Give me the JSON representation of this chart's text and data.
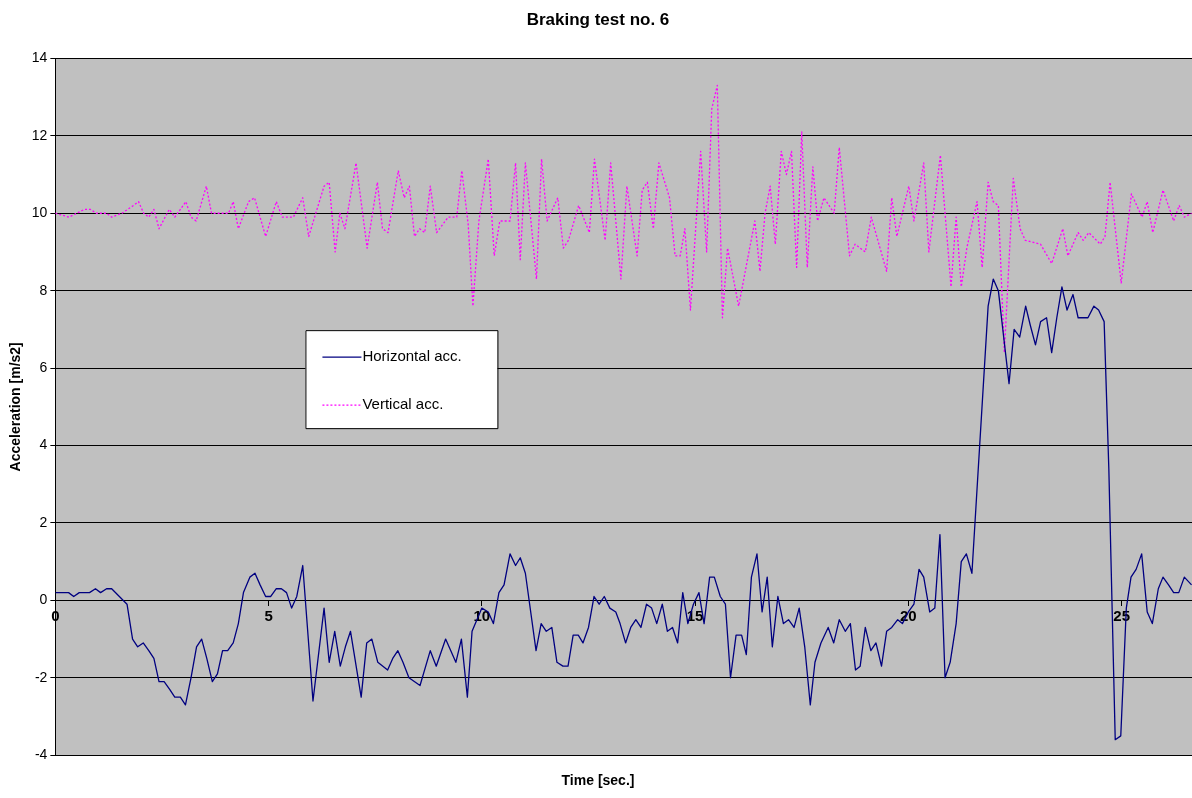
{
  "chart_data": {
    "type": "line",
    "title": "Braking test no. 6",
    "xlabel": "Time [sec.]",
    "ylabel": "Acceleration [m/s2]",
    "xlim": [
      0,
      26.65
    ],
    "xticks": [
      0,
      5,
      10,
      15,
      20,
      25
    ],
    "ylim": [
      -4,
      14
    ],
    "yticks": [
      -4,
      -2,
      0,
      2,
      4,
      6,
      8,
      10,
      12,
      14
    ],
    "grid": "y",
    "legend": "left",
    "series": [
      {
        "name": "Horizontal acc.",
        "color": "#000080",
        "line_style": "solid",
        "x": [
          0,
          0.31,
          0.43,
          0.56,
          0.8,
          0.94,
          1.06,
          1.2,
          1.32,
          1.68,
          1.81,
          1.93,
          2.06,
          2.19,
          2.31,
          2.43,
          2.55,
          2.68,
          2.8,
          2.93,
          3.05,
          3.18,
          3.31,
          3.43,
          3.55,
          3.68,
          3.8,
          3.92,
          4.04,
          4.17,
          4.29,
          4.41,
          4.56,
          4.68,
          4.8,
          4.93,
          5.05,
          5.18,
          5.3,
          5.42,
          5.54,
          5.66,
          5.8,
          6.04,
          6.3,
          6.42,
          6.55,
          6.68,
          6.8,
          6.92,
          7.17,
          7.3,
          7.42,
          7.56,
          7.79,
          7.91,
          8.03,
          8.15,
          8.29,
          8.55,
          8.79,
          8.93,
          9.15,
          9.39,
          9.52,
          9.66,
          9.77,
          10.0,
          10.15,
          10.27,
          10.4,
          10.52,
          10.66,
          10.79,
          10.9,
          11.02,
          11.27,
          11.39,
          11.51,
          11.64,
          11.76,
          11.9,
          12.02,
          12.14,
          12.26,
          12.37,
          12.5,
          12.63,
          12.75,
          12.87,
          13.0,
          13.14,
          13.24,
          13.37,
          13.49,
          13.61,
          13.73,
          13.86,
          13.98,
          14.1,
          14.23,
          14.35,
          14.47,
          14.59,
          14.71,
          14.83,
          14.96,
          15.09,
          15.21,
          15.34,
          15.45,
          15.59,
          15.71,
          15.83,
          15.96,
          16.09,
          16.2,
          16.32,
          16.45,
          16.57,
          16.69,
          16.81,
          16.94,
          17.07,
          17.19,
          17.32,
          17.44,
          17.57,
          17.7,
          17.81,
          17.95,
          18.12,
          18.25,
          18.38,
          18.52,
          18.64,
          18.76,
          18.87,
          18.99,
          19.12,
          19.24,
          19.37,
          19.49,
          19.61,
          19.75,
          19.86,
          20.0,
          20.13,
          20.25,
          20.36,
          20.5,
          20.62,
          20.74,
          20.86,
          20.98,
          21.12,
          21.24,
          21.36,
          21.49,
          21.87,
          21.99,
          22.11,
          22.36,
          22.48,
          22.61,
          22.75,
          22.86,
          22.98,
          23.1,
          23.24,
          23.36,
          23.48,
          23.6,
          23.72,
          23.86,
          23.98,
          24.21,
          24.35,
          24.46,
          24.59,
          24.7,
          24.85,
          24.98,
          25.11,
          25.22,
          25.34,
          25.47,
          25.6,
          25.72,
          25.86,
          25.97,
          26.1,
          26.22,
          26.34,
          26.47,
          26.64
        ],
        "values": [
          0.2,
          0.2,
          0.1,
          0.2,
          0.2,
          0.3,
          0.2,
          0.3,
          0.3,
          -0.1,
          -1.0,
          -1.2,
          -1.1,
          -1.3,
          -1.5,
          -2.1,
          -2.1,
          -2.3,
          -2.5,
          -2.5,
          -2.7,
          -2.0,
          -1.2,
          -1.0,
          -1.5,
          -2.1,
          -1.9,
          -1.3,
          -1.3,
          -1.1,
          -0.6,
          0.2,
          0.6,
          0.7,
          0.4,
          0.1,
          0.1,
          0.3,
          0.3,
          0.2,
          -0.2,
          0.1,
          0.9,
          -2.6,
          -0.2,
          -1.6,
          -0.8,
          -1.7,
          -1.2,
          -0.8,
          -2.5,
          -1.1,
          -1.0,
          -1.6,
          -1.8,
          -1.5,
          -1.3,
          -1.6,
          -2.0,
          -2.2,
          -1.3,
          -1.7,
          -1.0,
          -1.6,
          -1.0,
          -2.5,
          -0.8,
          -0.2,
          -0.3,
          -0.6,
          0.2,
          0.4,
          1.2,
          0.9,
          1.1,
          0.7,
          -1.3,
          -0.6,
          -0.8,
          -0.7,
          -1.6,
          -1.7,
          -1.7,
          -0.9,
          -0.9,
          -1.1,
          -0.7,
          0.1,
          -0.1,
          0.1,
          -0.2,
          -0.3,
          -0.6,
          -1.1,
          -0.7,
          -0.5,
          -0.7,
          -0.1,
          -0.2,
          -0.6,
          -0.1,
          -0.8,
          -0.7,
          -1.1,
          0.2,
          -0.6,
          -0.1,
          0.2,
          -0.6,
          0.6,
          0.6,
          0.1,
          -0.1,
          -2.0,
          -0.9,
          -0.9,
          -1.4,
          0.6,
          1.2,
          -0.3,
          0.6,
          -1.2,
          0.1,
          -0.6,
          -0.5,
          -0.7,
          -0.2,
          -1.2,
          -2.7,
          -1.6,
          -1.1,
          -0.7,
          -1.1,
          -0.5,
          -0.8,
          -0.6,
          -1.8,
          -1.7,
          -0.7,
          -1.3,
          -1.1,
          -1.7,
          -0.8,
          -0.7,
          -0.5,
          -0.6,
          -0.3,
          -0.1,
          0.8,
          0.6,
          -0.3,
          -0.2,
          1.7,
          -2.0,
          -1.6,
          -0.6,
          1.0,
          1.2,
          0.7,
          7.6,
          8.3,
          8.0,
          5.6,
          7.0,
          6.8,
          7.6,
          7.1,
          6.6,
          7.2,
          7.3,
          6.4,
          7.3,
          8.1,
          7.5,
          7.9,
          7.3,
          7.3,
          7.6,
          7.5,
          7.2,
          3.4,
          -3.6,
          -3.5,
          -0.2,
          0.6,
          0.8,
          1.2,
          -0.3,
          -0.6,
          0.3,
          0.6,
          0.4,
          0.2,
          0.2,
          0.6,
          0.4
        ]
      },
      {
        "name": "Vertical acc.",
        "color": "#ff00ff",
        "line_style": "dotted",
        "x": [
          0,
          0.32,
          0.68,
          0.82,
          0.96,
          1.2,
          1.32,
          1.56,
          1.83,
          1.95,
          2.07,
          2.19,
          2.31,
          2.43,
          2.67,
          2.8,
          3.06,
          3.18,
          3.3,
          3.54,
          3.66,
          4.06,
          4.17,
          4.29,
          4.53,
          4.67,
          4.93,
          5.18,
          5.32,
          5.58,
          5.8,
          5.94,
          6.3,
          6.42,
          6.56,
          6.67,
          6.79,
          7.05,
          7.31,
          7.55,
          7.67,
          7.8,
          8.04,
          8.18,
          8.3,
          8.42,
          8.54,
          8.66,
          8.79,
          8.94,
          9.21,
          9.41,
          9.53,
          9.68,
          9.79,
          9.93,
          10.15,
          10.29,
          10.42,
          10.66,
          10.79,
          10.9,
          11.02,
          11.28,
          11.4,
          11.53,
          11.78,
          11.91,
          12.03,
          12.27,
          12.52,
          12.64,
          12.89,
          13.02,
          13.26,
          13.4,
          13.64,
          13.76,
          13.88,
          14.02,
          14.15,
          14.4,
          14.53,
          14.65,
          14.76,
          14.89,
          15.13,
          15.27,
          15.39,
          15.52,
          15.64,
          15.76,
          16.02,
          16.4,
          16.52,
          16.64,
          16.76,
          16.88,
          17.02,
          17.14,
          17.26,
          17.38,
          17.5,
          17.63,
          17.76,
          17.87,
          18.02,
          18.26,
          18.38,
          18.62,
          18.75,
          18.99,
          19.13,
          19.49,
          19.61,
          19.73,
          20.01,
          20.13,
          20.36,
          20.48,
          20.75,
          21.0,
          21.12,
          21.24,
          21.37,
          21.61,
          21.73,
          21.87,
          21.99,
          22.11,
          22.25,
          22.46,
          22.62,
          22.74,
          23.1,
          23.36,
          23.62,
          23.74,
          23.98,
          24.1,
          24.23,
          24.5,
          24.61,
          24.73,
          24.99,
          25.23,
          25.48,
          25.6,
          25.73,
          25.97,
          26.22,
          26.35,
          26.47,
          26.64
        ],
        "values": [
          10.0,
          9.9,
          10.1,
          10.1,
          10.0,
          10.0,
          9.9,
          10.0,
          10.2,
          10.3,
          10.0,
          9.9,
          10.1,
          9.6,
          10.1,
          9.9,
          10.3,
          9.9,
          9.8,
          10.7,
          10.0,
          10.0,
          10.3,
          9.6,
          10.3,
          10.4,
          9.4,
          10.3,
          9.9,
          9.9,
          10.4,
          9.4,
          10.7,
          10.8,
          9.0,
          10.0,
          9.6,
          11.3,
          9.1,
          10.8,
          9.6,
          9.5,
          11.1,
          10.4,
          10.7,
          9.4,
          9.6,
          9.5,
          10.7,
          9.5,
          9.9,
          9.9,
          11.1,
          9.7,
          7.6,
          9.8,
          11.4,
          8.9,
          9.8,
          9.8,
          11.3,
          8.8,
          11.3,
          8.3,
          11.4,
          9.8,
          10.4,
          9.1,
          9.3,
          10.2,
          9.5,
          11.4,
          9.3,
          11.3,
          8.3,
          10.7,
          8.9,
          10.6,
          10.8,
          9.6,
          11.3,
          10.4,
          8.9,
          8.9,
          9.6,
          7.5,
          11.6,
          9.0,
          12.7,
          13.3,
          7.3,
          9.1,
          7.6,
          9.8,
          8.5,
          10.0,
          10.7,
          9.2,
          11.6,
          11.0,
          11.6,
          8.6,
          12.1,
          8.6,
          11.2,
          9.8,
          10.4,
          10.0,
          11.7,
          8.9,
          9.2,
          9.0,
          9.9,
          8.5,
          10.4,
          9.4,
          10.7,
          9.8,
          11.3,
          9.0,
          11.5,
          8.1,
          9.9,
          8.1,
          9.1,
          10.3,
          8.6,
          10.8,
          10.3,
          10.2,
          6.4,
          10.9,
          9.6,
          9.3,
          9.2,
          8.7,
          9.6,
          8.9,
          9.5,
          9.3,
          9.5,
          9.2,
          9.4,
          10.8,
          8.2,
          10.5,
          9.9,
          10.3,
          9.5,
          10.6,
          9.8,
          10.2,
          9.9,
          10.0
        ]
      }
    ]
  }
}
